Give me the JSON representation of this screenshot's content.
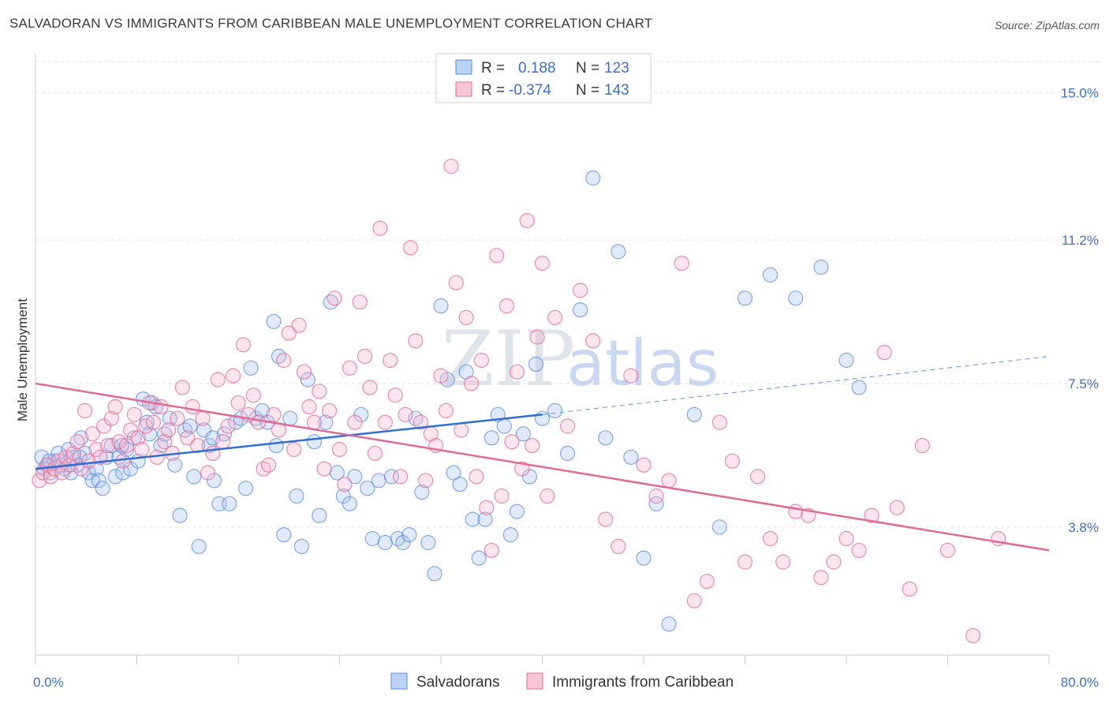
{
  "title": "SALVADORAN VS IMMIGRANTS FROM CARIBBEAN MALE UNEMPLOYMENT CORRELATION CHART",
  "source": "Source: ZipAtlas.com",
  "watermark": {
    "zip": "ZIP",
    "atlas": "atlas"
  },
  "chart_data": {
    "type": "scatter",
    "ylabel": "Male Unemployment",
    "xlim": [
      0,
      80
    ],
    "ylim": [
      0.5,
      15.8
    ],
    "x_tick_labels": [
      {
        "value": 0,
        "label": "0.0%"
      },
      {
        "value": 80,
        "label": "80.0%"
      }
    ],
    "y_tick_labels": [
      {
        "value": 3.8,
        "label": "3.8%"
      },
      {
        "value": 7.5,
        "label": "7.5%"
      },
      {
        "value": 11.2,
        "label": "11.2%"
      },
      {
        "value": 15.0,
        "label": "15.0%"
      }
    ],
    "legend_stats": [
      {
        "r_label": "R =",
        "r_value": "0.188",
        "n_label": "N =",
        "n_value": "123"
      },
      {
        "r_label": "R =",
        "r_value": "-0.374",
        "n_label": "N =",
        "n_value": "143"
      }
    ],
    "series": [
      {
        "name": "Salvadorans",
        "color": "#5b8ee0",
        "fill": "#a8c4f0",
        "trend": {
          "x0": 0,
          "y0": 5.3,
          "x1": 40,
          "y1": 6.7,
          "dash_x1": 80,
          "dash_y1": 8.2
        },
        "points": [
          [
            0.5,
            5.6
          ],
          [
            0.7,
            5.3
          ],
          [
            1.0,
            5.4
          ],
          [
            1.2,
            5.2
          ],
          [
            1.5,
            5.5
          ],
          [
            1.8,
            5.7
          ],
          [
            2.0,
            5.4
          ],
          [
            2.3,
            5.3
          ],
          [
            2.6,
            5.8
          ],
          [
            3.0,
            5.6
          ],
          [
            3.3,
            5.4
          ],
          [
            3.6,
            6.1
          ],
          [
            3.9,
            5.7
          ],
          [
            4.2,
            5.2
          ],
          [
            4.5,
            5.0
          ],
          [
            4.8,
            5.3
          ],
          [
            5.0,
            5.0
          ],
          [
            5.3,
            4.8
          ],
          [
            5.6,
            5.6
          ],
          [
            6.0,
            5.9
          ],
          [
            6.3,
            5.1
          ],
          [
            6.6,
            5.6
          ],
          [
            6.9,
            5.2
          ],
          [
            7.2,
            5.8
          ],
          [
            7.5,
            5.3
          ],
          [
            7.8,
            6.1
          ],
          [
            8.1,
            5.5
          ],
          [
            8.5,
            7.1
          ],
          [
            8.8,
            6.5
          ],
          [
            9.2,
            7.0
          ],
          [
            9.5,
            6.9
          ],
          [
            9.9,
            5.9
          ],
          [
            10.2,
            6.2
          ],
          [
            10.6,
            6.6
          ],
          [
            11.0,
            5.4
          ],
          [
            11.4,
            4.1
          ],
          [
            11.8,
            6.3
          ],
          [
            12.2,
            6.4
          ],
          [
            12.5,
            5.1
          ],
          [
            12.9,
            3.3
          ],
          [
            13.3,
            6.3
          ],
          [
            13.7,
            5.9
          ],
          [
            14.1,
            5.0
          ],
          [
            14.5,
            4.4
          ],
          [
            14.9,
            6.2
          ],
          [
            15.3,
            4.4
          ],
          [
            15.8,
            6.5
          ],
          [
            16.2,
            6.6
          ],
          [
            16.6,
            4.8
          ],
          [
            17.0,
            7.9
          ],
          [
            17.4,
            6.6
          ],
          [
            17.9,
            6.8
          ],
          [
            18.3,
            6.5
          ],
          [
            18.8,
            9.1
          ],
          [
            19.2,
            8.2
          ],
          [
            19.6,
            3.6
          ],
          [
            20.1,
            6.6
          ],
          [
            20.6,
            4.6
          ],
          [
            21.0,
            3.3
          ],
          [
            21.5,
            7.6
          ],
          [
            22.0,
            6.0
          ],
          [
            22.4,
            4.1
          ],
          [
            22.9,
            6.5
          ],
          [
            23.3,
            9.6
          ],
          [
            23.8,
            5.2
          ],
          [
            24.3,
            4.6
          ],
          [
            24.8,
            4.4
          ],
          [
            25.2,
            5.1
          ],
          [
            25.7,
            6.7
          ],
          [
            26.2,
            4.8
          ],
          [
            26.6,
            3.5
          ],
          [
            27.1,
            5.0
          ],
          [
            27.6,
            3.4
          ],
          [
            28.1,
            5.1
          ],
          [
            28.6,
            3.5
          ],
          [
            29.0,
            3.4
          ],
          [
            29.5,
            3.6
          ],
          [
            30.0,
            6.6
          ],
          [
            30.5,
            4.7
          ],
          [
            31.0,
            3.4
          ],
          [
            31.5,
            2.6
          ],
          [
            32.0,
            9.5
          ],
          [
            32.5,
            7.6
          ],
          [
            33.0,
            5.2
          ],
          [
            33.5,
            4.9
          ],
          [
            34.0,
            7.8
          ],
          [
            34.5,
            4.0
          ],
          [
            35.0,
            3.0
          ],
          [
            35.5,
            4.0
          ],
          [
            36.0,
            6.1
          ],
          [
            36.5,
            6.7
          ],
          [
            37.0,
            6.4
          ],
          [
            37.5,
            3.6
          ],
          [
            38.0,
            4.2
          ],
          [
            38.5,
            6.2
          ],
          [
            39.0,
            5.1
          ],
          [
            39.5,
            8.0
          ],
          [
            40.0,
            6.6
          ],
          [
            41.0,
            6.8
          ],
          [
            42.0,
            5.7
          ],
          [
            43.0,
            9.4
          ],
          [
            44.0,
            12.8
          ],
          [
            45.0,
            6.1
          ],
          [
            46.0,
            10.9
          ],
          [
            47.0,
            5.6
          ],
          [
            48.0,
            3.0
          ],
          [
            49.0,
            4.4
          ],
          [
            50.0,
            1.3
          ],
          [
            52.0,
            6.7
          ],
          [
            54.0,
            3.8
          ],
          [
            56.0,
            9.7
          ],
          [
            58.0,
            10.3
          ],
          [
            60.0,
            9.7
          ],
          [
            62.0,
            10.5
          ],
          [
            64.0,
            8.1
          ],
          [
            65.0,
            7.4
          ],
          [
            1.1,
            5.5
          ],
          [
            2.8,
            5.2
          ],
          [
            3.5,
            5.6
          ],
          [
            6.8,
            5.9
          ],
          [
            9.0,
            6.2
          ],
          [
            14.0,
            6.1
          ],
          [
            19.0,
            5.9
          ]
        ]
      },
      {
        "name": "Immigrants from Caribbean",
        "color": "#e06a96",
        "fill": "#f5b5cb",
        "trend": {
          "x0": 0,
          "y0": 7.5,
          "x1": 80,
          "y1": 3.2
        },
        "points": [
          [
            0.3,
            5.0
          ],
          [
            0.6,
            5.2
          ],
          [
            0.9,
            5.4
          ],
          [
            1.2,
            5.1
          ],
          [
            1.5,
            5.3
          ],
          [
            1.8,
            5.5
          ],
          [
            2.1,
            5.2
          ],
          [
            2.4,
            5.6
          ],
          [
            2.7,
            5.4
          ],
          [
            3.0,
            5.7
          ],
          [
            3.3,
            6.0
          ],
          [
            3.6,
            5.3
          ],
          [
            3.9,
            6.8
          ],
          [
            4.2,
            5.5
          ],
          [
            4.5,
            6.2
          ],
          [
            4.8,
            5.8
          ],
          [
            5.1,
            5.6
          ],
          [
            5.4,
            6.4
          ],
          [
            5.7,
            5.9
          ],
          [
            6.0,
            6.6
          ],
          [
            6.3,
            6.9
          ],
          [
            6.6,
            6.0
          ],
          [
            6.9,
            5.5
          ],
          [
            7.2,
            5.9
          ],
          [
            7.5,
            6.3
          ],
          [
            7.8,
            6.7
          ],
          [
            8.1,
            6.1
          ],
          [
            8.4,
            5.8
          ],
          [
            8.7,
            6.4
          ],
          [
            9.0,
            7.0
          ],
          [
            9.3,
            6.5
          ],
          [
            9.6,
            5.6
          ],
          [
            9.9,
            6.9
          ],
          [
            10.2,
            6.0
          ],
          [
            10.5,
            6.3
          ],
          [
            10.8,
            5.7
          ],
          [
            11.2,
            6.6
          ],
          [
            11.6,
            7.4
          ],
          [
            12.0,
            6.1
          ],
          [
            12.4,
            6.9
          ],
          [
            12.8,
            5.9
          ],
          [
            13.2,
            6.6
          ],
          [
            13.6,
            5.2
          ],
          [
            14.0,
            5.7
          ],
          [
            14.4,
            7.6
          ],
          [
            14.8,
            6.0
          ],
          [
            15.2,
            6.4
          ],
          [
            15.6,
            7.7
          ],
          [
            16.0,
            7.0
          ],
          [
            16.4,
            8.5
          ],
          [
            16.8,
            6.7
          ],
          [
            17.2,
            7.2
          ],
          [
            17.6,
            6.5
          ],
          [
            18.0,
            5.3
          ],
          [
            18.4,
            5.4
          ],
          [
            18.8,
            6.7
          ],
          [
            19.2,
            6.3
          ],
          [
            19.6,
            8.1
          ],
          [
            20.0,
            8.8
          ],
          [
            20.4,
            5.8
          ],
          [
            20.8,
            9.0
          ],
          [
            21.2,
            7.8
          ],
          [
            21.6,
            6.9
          ],
          [
            22.0,
            6.5
          ],
          [
            22.4,
            7.3
          ],
          [
            22.8,
            5.3
          ],
          [
            23.2,
            6.8
          ],
          [
            23.6,
            9.7
          ],
          [
            24.0,
            5.8
          ],
          [
            24.4,
            4.9
          ],
          [
            24.8,
            7.9
          ],
          [
            25.2,
            6.5
          ],
          [
            25.6,
            9.6
          ],
          [
            26.0,
            8.2
          ],
          [
            26.4,
            7.4
          ],
          [
            26.8,
            5.7
          ],
          [
            27.2,
            11.5
          ],
          [
            27.6,
            6.5
          ],
          [
            28.0,
            8.1
          ],
          [
            28.4,
            7.2
          ],
          [
            28.8,
            5.1
          ],
          [
            29.2,
            6.7
          ],
          [
            29.6,
            11.0
          ],
          [
            30.0,
            8.6
          ],
          [
            30.4,
            6.5
          ],
          [
            30.8,
            5.0
          ],
          [
            31.2,
            6.2
          ],
          [
            31.6,
            5.9
          ],
          [
            32.0,
            7.7
          ],
          [
            32.4,
            6.8
          ],
          [
            32.8,
            13.1
          ],
          [
            33.2,
            10.1
          ],
          [
            33.6,
            6.3
          ],
          [
            34.0,
            9.2
          ],
          [
            34.4,
            7.5
          ],
          [
            34.8,
            5.1
          ],
          [
            35.2,
            8.1
          ],
          [
            35.6,
            4.3
          ],
          [
            36.0,
            3.2
          ],
          [
            36.4,
            10.8
          ],
          [
            36.8,
            4.6
          ],
          [
            37.2,
            9.5
          ],
          [
            37.6,
            6.0
          ],
          [
            38.0,
            7.8
          ],
          [
            38.4,
            5.3
          ],
          [
            38.8,
            11.7
          ],
          [
            39.2,
            5.9
          ],
          [
            39.6,
            8.7
          ],
          [
            40.0,
            10.6
          ],
          [
            40.4,
            4.6
          ],
          [
            41.0,
            9.2
          ],
          [
            42.0,
            6.4
          ],
          [
            43.0,
            9.9
          ],
          [
            44.0,
            8.6
          ],
          [
            45.0,
            4.0
          ],
          [
            46.0,
            3.3
          ],
          [
            47.0,
            7.7
          ],
          [
            48.0,
            5.4
          ],
          [
            49.0,
            4.6
          ],
          [
            50.0,
            5.0
          ],
          [
            51.0,
            10.6
          ],
          [
            52.0,
            1.9
          ],
          [
            53.0,
            2.4
          ],
          [
            54.0,
            6.5
          ],
          [
            55.0,
            5.5
          ],
          [
            56.0,
            2.9
          ],
          [
            57.0,
            5.1
          ],
          [
            58.0,
            3.5
          ],
          [
            59.0,
            2.9
          ],
          [
            60.0,
            4.2
          ],
          [
            61.0,
            4.1
          ],
          [
            62.0,
            2.5
          ],
          [
            63.0,
            2.9
          ],
          [
            64.0,
            3.5
          ],
          [
            65.0,
            3.2
          ],
          [
            66.0,
            4.1
          ],
          [
            67.0,
            8.3
          ],
          [
            68.0,
            4.3
          ],
          [
            69.0,
            2.2
          ],
          [
            70.0,
            5.9
          ],
          [
            72.0,
            3.2
          ],
          [
            74.0,
            1.0
          ],
          [
            76.0,
            3.5
          ]
        ]
      }
    ]
  },
  "bottom_legend": [
    {
      "label": "Salvadorans"
    },
    {
      "label": "Immigrants from Caribbean"
    }
  ]
}
